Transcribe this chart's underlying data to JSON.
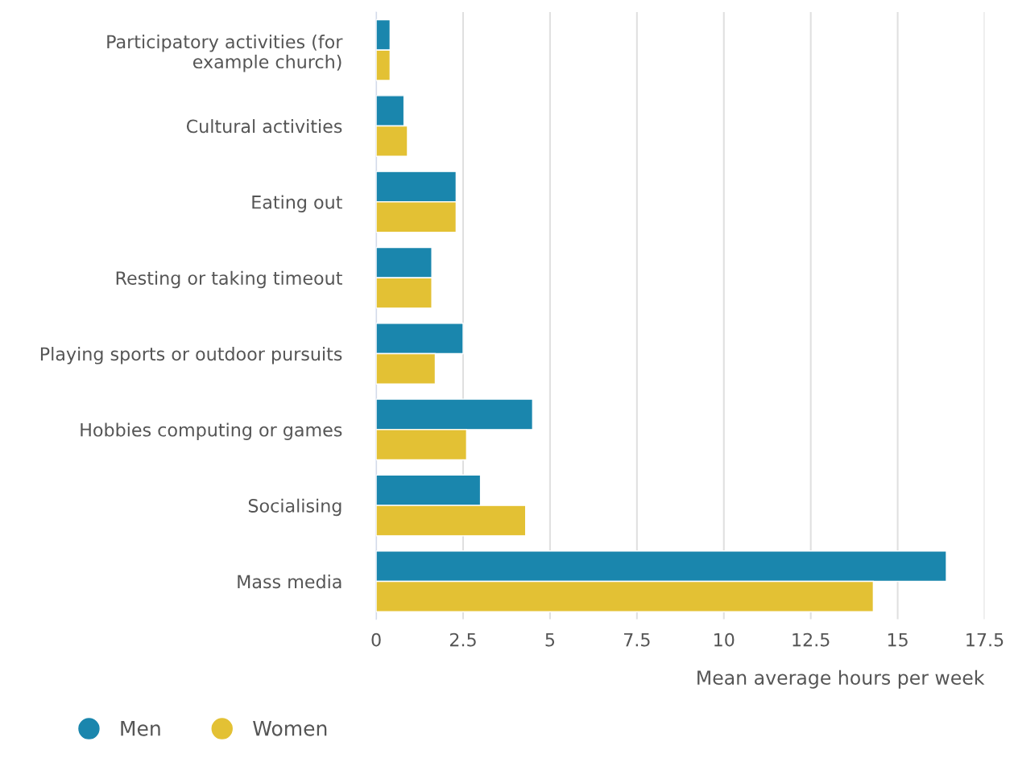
{
  "chart_data": {
    "type": "bar",
    "orientation": "horizontal",
    "categories": [
      "Participatory activities (for example church)",
      "Cultural activities",
      "Eating out",
      "Resting or taking timeout",
      "Playing sports or outdoor pursuits",
      "Hobbies computing or games",
      "Socialising",
      "Mass media"
    ],
    "series": [
      {
        "name": "Men",
        "color": "#1a86ad",
        "values": [
          0.4,
          0.8,
          2.3,
          1.6,
          2.5,
          4.5,
          3.0,
          16.4
        ]
      },
      {
        "name": "Women",
        "color": "#e3c134",
        "values": [
          0.4,
          0.9,
          2.3,
          1.6,
          1.7,
          2.6,
          4.3,
          14.3
        ]
      }
    ],
    "xlabel": "Mean average hours per week",
    "xlim": [
      0,
      17.5
    ],
    "xticks": [
      0,
      2.5,
      5,
      7.5,
      10,
      12.5,
      15,
      17.5
    ],
    "grid": "x",
    "legend": "bottom left"
  }
}
